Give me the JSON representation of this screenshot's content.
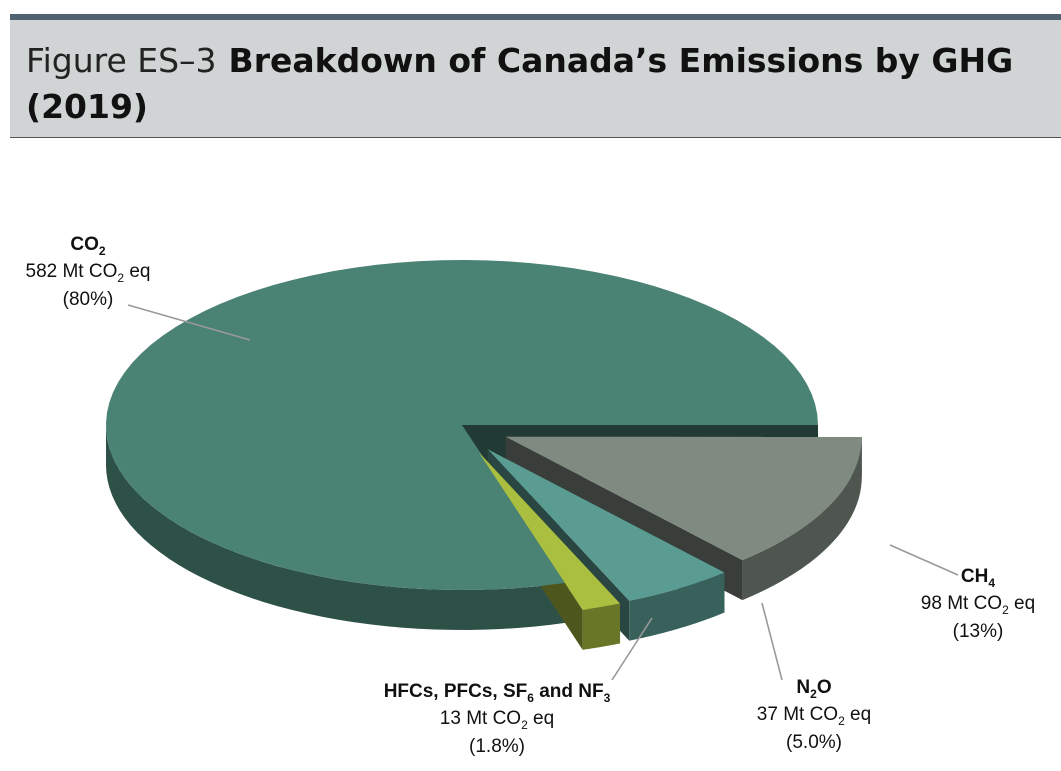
{
  "chart_data": {
    "type": "pie",
    "figure_label": "Figure ES–3",
    "title": "Breakdown of Canada’s Emissions by GHG (2019)",
    "categories": [
      "CO2",
      "CH4",
      "N2O",
      "HFCs, PFCs, SF6 and NF3"
    ],
    "values": [
      582,
      98,
      37,
      13
    ],
    "value_labels": [
      "582 Mt CO2 eq",
      "98 Mt CO2 eq",
      "37 Mt CO2 eq",
      "13 Mt CO2 eq"
    ],
    "percents": [
      80,
      13,
      5.0,
      1.8
    ],
    "percent_labels": [
      "(80%)",
      "(13%)",
      "(5.0%)",
      "(1.8%)"
    ],
    "colors": [
      "#4a8273",
      "#7f8a80",
      "#5a9c92",
      "#aabf40"
    ]
  }
}
